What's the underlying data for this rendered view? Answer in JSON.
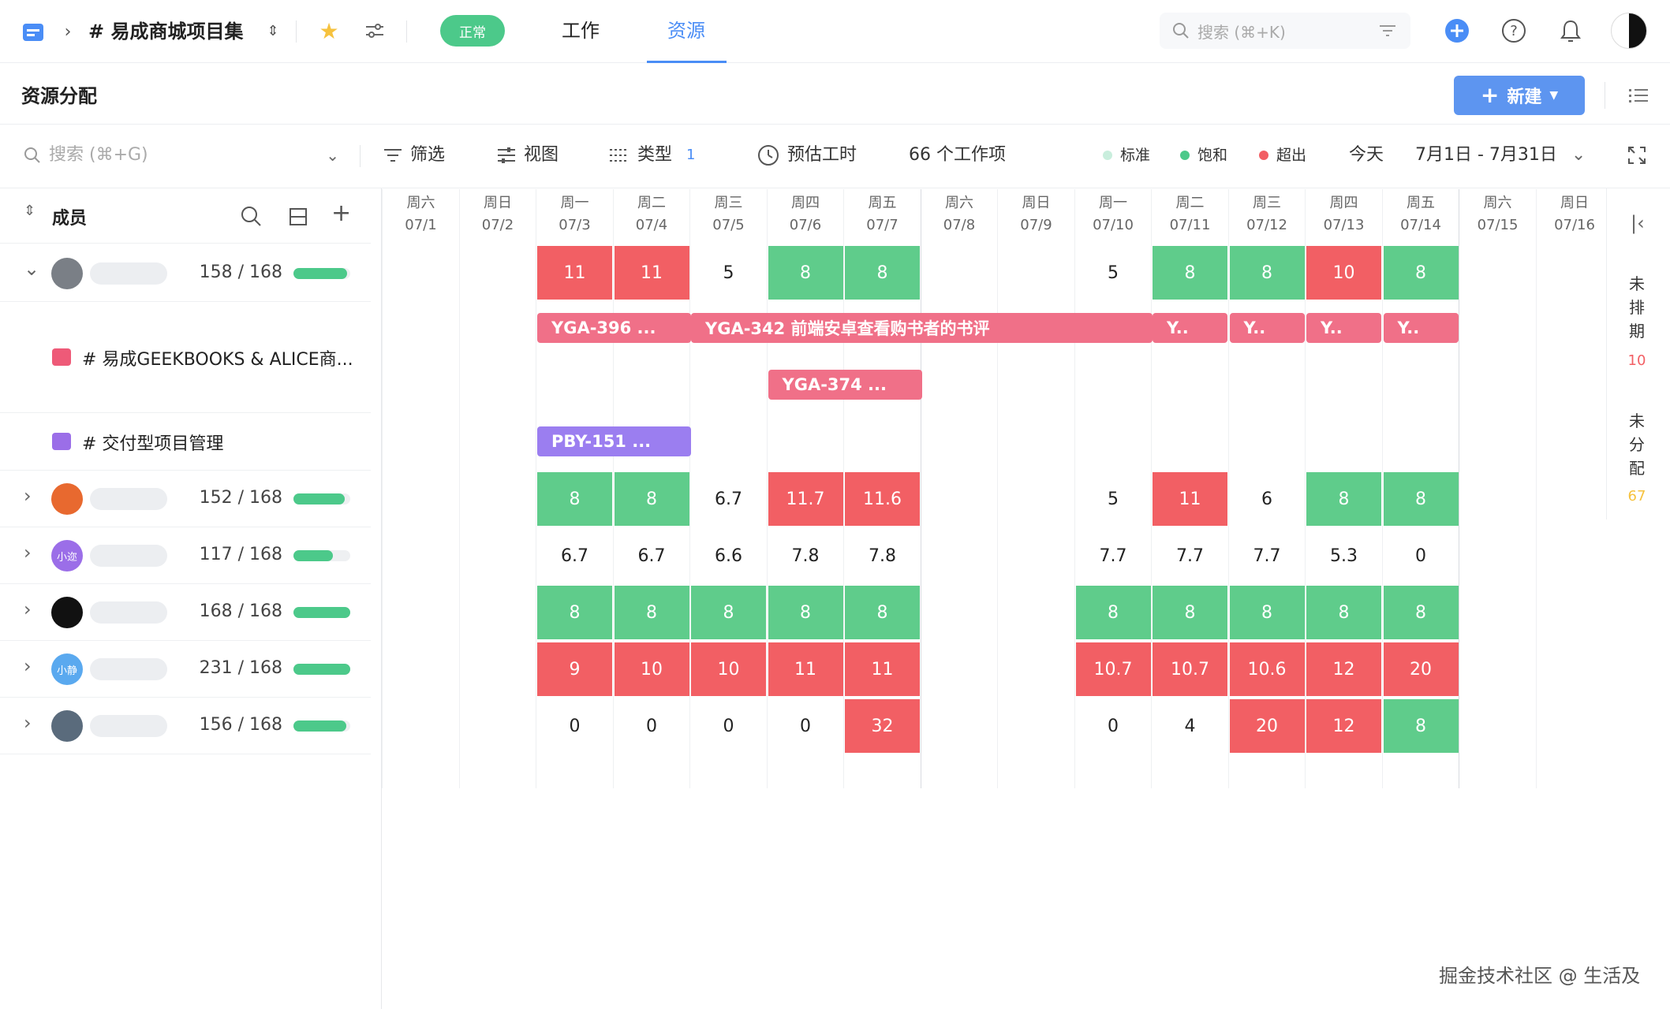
{
  "topbar": {
    "project_title": "# 易成商城项目集",
    "status": "正常",
    "tabs": [
      {
        "label": "工作"
      },
      {
        "label": "资源"
      }
    ],
    "active_tab": "资源",
    "search_placeholder": "搜索 (⌘+K)",
    "icons": [
      "project-icon",
      "chevron-right-icon",
      "switch-icon",
      "star-icon",
      "settings-icon",
      "filter-icon",
      "add-circle-icon",
      "help-icon",
      "bell-icon",
      "avatar"
    ]
  },
  "page": {
    "title": "资源分配",
    "new_button": "新建"
  },
  "toolbar": {
    "search_placeholder": "搜索 (⌘+G)",
    "filter": "筛选",
    "view": "视图",
    "type": "类型",
    "type_count": "1",
    "estimate": "预估工时",
    "work_items": "66 个工作项",
    "legend": [
      {
        "label": "标准",
        "color": "#c9eedd"
      },
      {
        "label": "饱和",
        "color": "#4cc98a"
      },
      {
        "label": "超出",
        "color": "#f25f64"
      }
    ],
    "today": "今天",
    "date_range": "7月1日 - 7月31日"
  },
  "left_panel": {
    "header": "成员",
    "members": [
      {
        "hours": "158 / 168",
        "fill": 0.94,
        "avatar_color": "#7a7f86",
        "avatar_text": ""
      },
      {
        "hours": "152 / 168",
        "fill": 0.9,
        "avatar_color": "#e8692f",
        "avatar_text": ""
      },
      {
        "hours": "117 / 168",
        "fill": 0.7,
        "avatar_color": "#9b6ee8",
        "avatar_text": "小迩"
      },
      {
        "hours": "168 / 168",
        "fill": 1.0,
        "avatar_color": "#111111",
        "avatar_text": ""
      },
      {
        "hours": "231 / 168",
        "fill": 1.0,
        "avatar_color": "#5aa9ef",
        "avatar_text": "小静"
      },
      {
        "hours": "156 / 168",
        "fill": 0.93,
        "avatar_color": "#5a6b7c",
        "avatar_text": ""
      }
    ],
    "projects": [
      {
        "label": "# 易成GEEKBOOKS & ALICE商...",
        "icon_color": "#ee5a78"
      },
      {
        "label": "# 交付型项目管理",
        "icon_color": "#9b6ee8"
      }
    ]
  },
  "days": [
    {
      "w": "周六",
      "d": "07/1"
    },
    {
      "w": "周日",
      "d": "07/2"
    },
    {
      "w": "周一",
      "d": "07/3"
    },
    {
      "w": "周二",
      "d": "07/4"
    },
    {
      "w": "周三",
      "d": "07/5"
    },
    {
      "w": "周四",
      "d": "07/6"
    },
    {
      "w": "周五",
      "d": "07/7"
    },
    {
      "w": "周六",
      "d": "07/8"
    },
    {
      "w": "周日",
      "d": "07/9"
    },
    {
      "w": "周一",
      "d": "07/10"
    },
    {
      "w": "周二",
      "d": "07/11"
    },
    {
      "w": "周三",
      "d": "07/12"
    },
    {
      "w": "周四",
      "d": "07/13"
    },
    {
      "w": "周五",
      "d": "07/14"
    },
    {
      "w": "周六",
      "d": "07/15"
    },
    {
      "w": "周日",
      "d": "07/16"
    }
  ],
  "grid_rows": [
    {
      "cells": [
        [
          "11",
          "r"
        ],
        [
          "11",
          "r"
        ],
        [
          "5",
          ""
        ],
        [
          "8",
          "g"
        ],
        [
          "8",
          "g"
        ],
        null,
        null,
        [
          "5",
          ""
        ],
        [
          "8",
          "g"
        ],
        [
          "8",
          "g"
        ],
        [
          "10",
          "r"
        ],
        [
          "8",
          "g"
        ]
      ]
    },
    {
      "cells": [
        [
          "8",
          "g"
        ],
        [
          "8",
          "g"
        ],
        [
          "6.7",
          ""
        ],
        [
          "11.7",
          "r"
        ],
        [
          "11.6",
          "r"
        ],
        null,
        null,
        [
          "5",
          ""
        ],
        [
          "11",
          "r"
        ],
        [
          "6",
          ""
        ],
        [
          "8",
          "g"
        ],
        [
          "8",
          "g"
        ]
      ]
    },
    {
      "cells": [
        [
          "6.7",
          ""
        ],
        [
          "6.7",
          ""
        ],
        [
          "6.6",
          ""
        ],
        [
          "7.8",
          ""
        ],
        [
          "7.8",
          ""
        ],
        null,
        null,
        [
          "7.7",
          ""
        ],
        [
          "7.7",
          ""
        ],
        [
          "7.7",
          ""
        ],
        [
          "5.3",
          ""
        ],
        [
          "0",
          ""
        ]
      ]
    },
    {
      "cells": [
        [
          "8",
          "g"
        ],
        [
          "8",
          "g"
        ],
        [
          "8",
          "g"
        ],
        [
          "8",
          "g"
        ],
        [
          "8",
          "g"
        ],
        null,
        null,
        [
          "8",
          "g"
        ],
        [
          "8",
          "g"
        ],
        [
          "8",
          "g"
        ],
        [
          "8",
          "g"
        ],
        [
          "8",
          "g"
        ]
      ]
    },
    {
      "cells": [
        [
          "9",
          "r"
        ],
        [
          "10",
          "r"
        ],
        [
          "10",
          "r"
        ],
        [
          "11",
          "r"
        ],
        [
          "11",
          "r"
        ],
        null,
        null,
        [
          "10.7",
          "r"
        ],
        [
          "10.7",
          "r"
        ],
        [
          "10.6",
          "r"
        ],
        [
          "12",
          "r"
        ],
        [
          "20",
          "r"
        ]
      ]
    },
    {
      "cells": [
        [
          "0",
          ""
        ],
        [
          "0",
          ""
        ],
        [
          "0",
          ""
        ],
        [
          "0",
          ""
        ],
        [
          "32",
          "r"
        ],
        null,
        null,
        [
          "0",
          ""
        ],
        [
          "4",
          ""
        ],
        [
          "20",
          "r"
        ],
        [
          "12",
          "r"
        ],
        [
          "8",
          "g"
        ]
      ]
    }
  ],
  "tasks": [
    {
      "label": "YGA-396 ...",
      "color": "#f07088"
    },
    {
      "label": "YGA-342  前端安卓查看购书者的书评",
      "color": "#f07088"
    },
    {
      "label": "Y..",
      "color": "#f07088"
    },
    {
      "label": "Y..",
      "color": "#f07088"
    },
    {
      "label": "Y..",
      "color": "#f07088"
    },
    {
      "label": "Y..",
      "color": "#f07088"
    },
    {
      "label": "YGA-374 ...",
      "color": "#f07088"
    },
    {
      "label": "PBY-151  ...",
      "color": "#9b7ef0"
    }
  ],
  "right_rail": {
    "unscheduled_label": "未排期",
    "unscheduled_count": "10",
    "unassigned_label": "未分配",
    "unassigned_count": "67"
  },
  "watermark": "掘金技术社区 @ 生活及"
}
